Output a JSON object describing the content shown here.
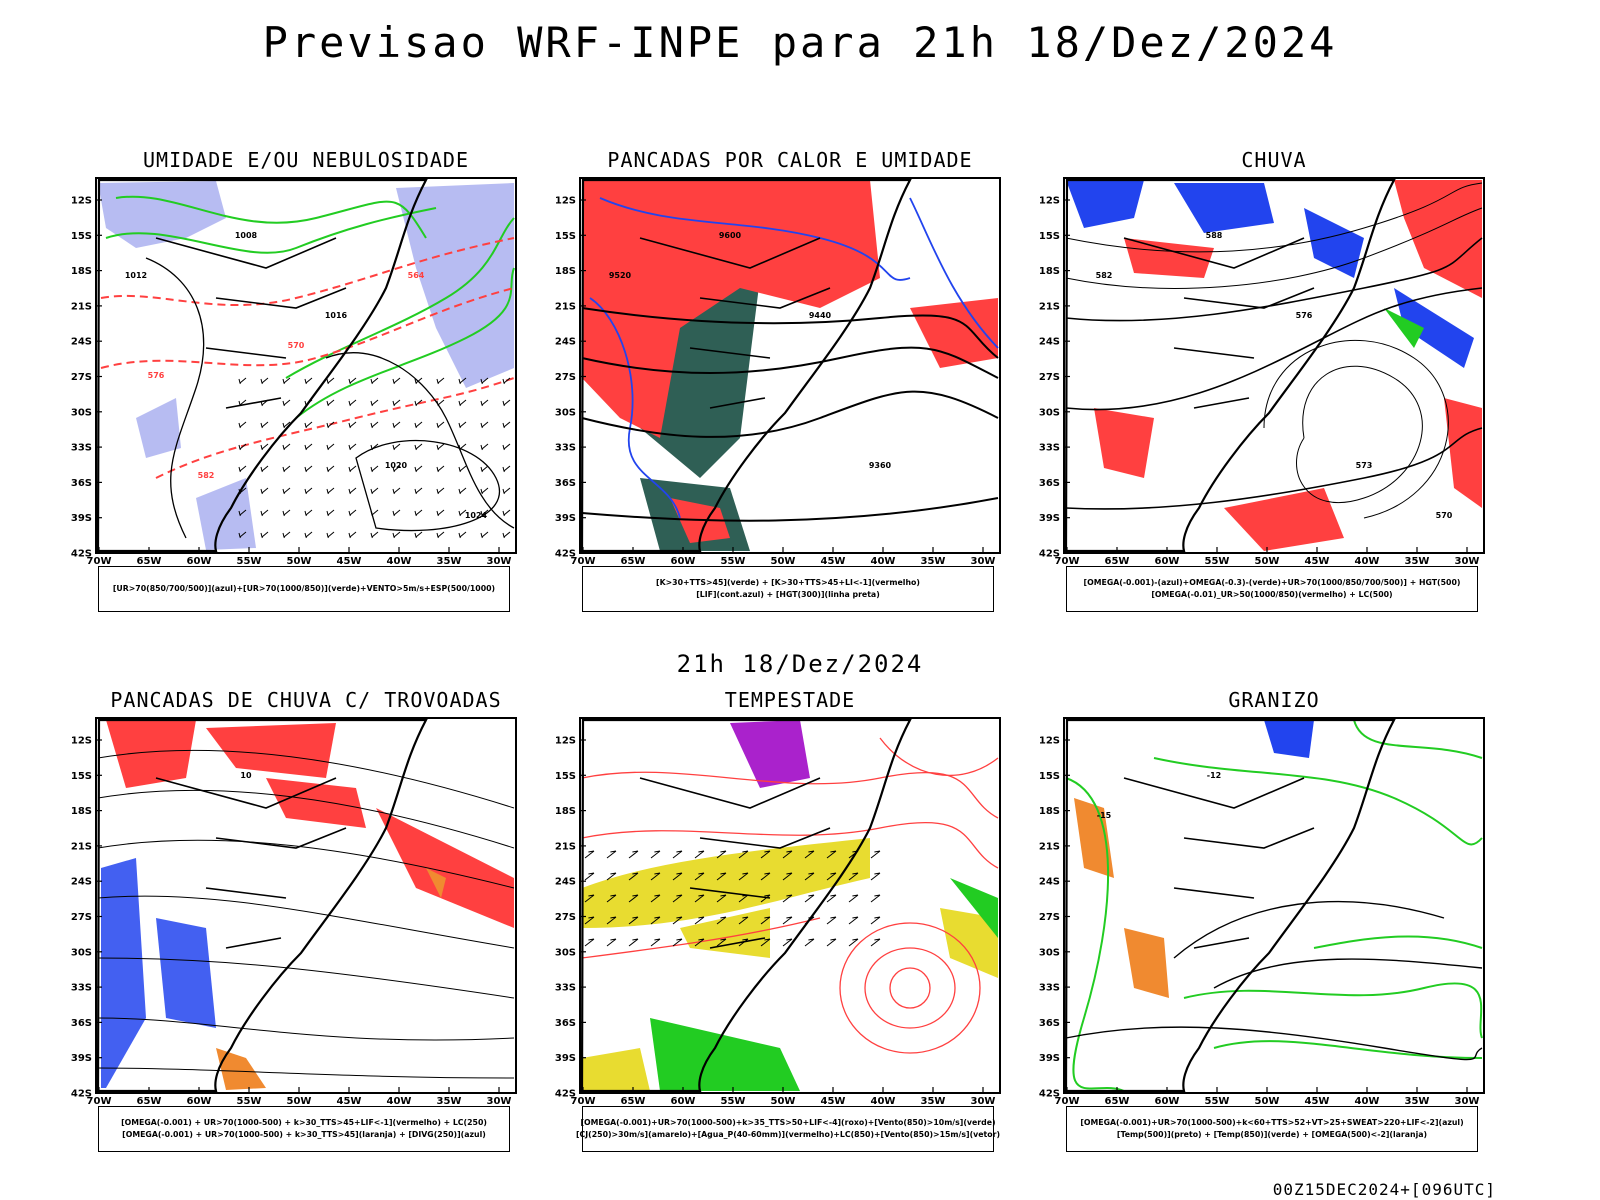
{
  "header": {
    "title": "Previsao WRF-INPE  para 21h 18/Dez/2024",
    "subtitle": "21h 18/Dez/2024",
    "run_stamp": "00Z15DEC2024+[096UTC]"
  },
  "axes": {
    "lat_labels": [
      "12S",
      "15S",
      "18S",
      "21S",
      "24S",
      "27S",
      "30S",
      "33S",
      "36S",
      "39S",
      "42S"
    ],
    "lon_labels": [
      "70W",
      "65W",
      "60W",
      "55W",
      "50W",
      "45W",
      "40W",
      "35W",
      "30W"
    ]
  },
  "colors": {
    "humidity_blue": "#aab0f0",
    "green": "#22cc22",
    "red": "#ff4040",
    "teal": "#2f5f55",
    "blue": "#2244ee",
    "yellow": "#e8dc30",
    "orange": "#f08a30",
    "purple": "#aa22cc"
  },
  "panels": [
    {
      "key": "umidade",
      "title": "UMIDADE E/OU NEBULOSIDADE",
      "legend": [
        "[UR>70(850/700/500)](azul)+[UR>70(1000/850)](verde)+VENTO>5m/s+ESP(500/1000)"
      ],
      "contour_labels": [
        "1008",
        "1012",
        "1016",
        "1020",
        "1024",
        "576",
        "570",
        "564",
        "582"
      ]
    },
    {
      "key": "pancadas_calor",
      "title": "PANCADAS POR CALOR E UMIDADE",
      "legend": [
        "[K>30+TTS>45](verde) + [K>30+TTS>45+LI<-1](vermelho)",
        "[LIF](cont.azul) + [HGT(300)](linha preta)"
      ],
      "contour_labels": [
        "9600",
        "9520",
        "9440",
        "9360"
      ]
    },
    {
      "key": "chuva",
      "title": "CHUVA",
      "legend": [
        "[OMEGA(-0.001)-(azul)+OMEGA(-0.3)-(verde)+UR>70(1000/850/700/500)] + HGT(500)",
        "[OMEGA(-0.01)_UR>50(1000/850)(vermelho) + LC(500)"
      ],
      "contour_labels": [
        "588",
        "582",
        "576",
        "573",
        "570"
      ]
    },
    {
      "key": "trovoadas",
      "title": "PANCADAS DE CHUVA C/ TROVOADAS",
      "legend": [
        "[OMEGA(-0.001) + UR>70(1000-500) + k>30_TTS>45+LIF<-1](vermelho) + LC(250)",
        "[OMEGA(-0.001) + UR>70(1000-500) + k>30_TTS>45](laranja) + [DIVG(250)](azul)"
      ],
      "contour_labels": [
        "10"
      ]
    },
    {
      "key": "tempestade",
      "title": "TEMPESTADE",
      "legend": [
        "[OMEGA(-0.001)+UR>70(1000-500)+k>35_TTS>50+LIF<-4](roxo)+[Vento(850)>10m/s](verde)",
        "[CJ(250)>30m/s](amarelo)+[Agua_P(40-60mm)](vermelho)+LC(850)+[Vento(850)>15m/s](vetor)"
      ],
      "contour_labels": []
    },
    {
      "key": "granizo",
      "title": "GRANIZO",
      "legend": [
        "[OMEGA(-0.001)+UR>70(1000-500)+k<60+TTS>52+VT>25+SWEAT>220+LIF<-2](azul)",
        "[Temp(500)](preto) + [Temp(850)](verde) + [OMEGA(500)<-2](laranja)"
      ],
      "contour_labels": [
        "-12",
        "-15"
      ]
    }
  ]
}
